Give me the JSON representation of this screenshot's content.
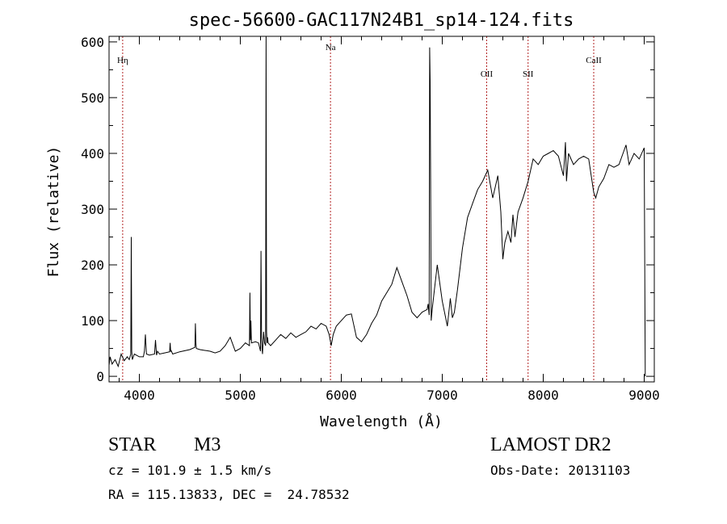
{
  "chart_data": {
    "type": "line",
    "title": "spec-56600-GAC117N24B1_sp14-124.fits",
    "xlabel": "Wavelength (Å)",
    "ylabel": "Flux (relative)",
    "xlim": [
      3700,
      9100
    ],
    "ylim": [
      -10,
      610
    ],
    "xticks": [
      4000,
      5000,
      6000,
      7000,
      8000,
      9000
    ],
    "yticks": [
      0,
      100,
      200,
      300,
      400,
      500,
      600
    ],
    "grid": false,
    "series": [
      {
        "color": "#000000",
        "x": [
          3700,
          3710,
          3730,
          3760,
          3790,
          3820,
          3850,
          3880,
          3900,
          3915,
          3920,
          3925,
          3930,
          3950,
          4000,
          4040,
          4050,
          4060,
          4070,
          4100,
          4150,
          4160,
          4170,
          4180,
          4200,
          4250,
          4300,
          4305,
          4310,
          4315,
          4330,
          4400,
          4500,
          4550,
          4555,
          4560,
          4565,
          4600,
          4700,
          4750,
          4800,
          4850,
          4900,
          4950,
          5000,
          5050,
          5090,
          5095,
          5100,
          5105,
          5110,
          5150,
          5180,
          5200,
          5205,
          5210,
          5215,
          5220,
          5230,
          5240,
          5250,
          5255,
          5260,
          5265,
          5270,
          5275,
          5300,
          5350,
          5400,
          5450,
          5500,
          5550,
          5600,
          5650,
          5700,
          5750,
          5800,
          5850,
          5880,
          5900,
          5920,
          5950,
          6000,
          6050,
          6100,
          6150,
          6200,
          6250,
          6300,
          6350,
          6400,
          6450,
          6500,
          6550,
          6600,
          6650,
          6700,
          6750,
          6800,
          6850,
          6860,
          6870,
          6875,
          6880,
          6885,
          6890,
          6900,
          6950,
          7000,
          7050,
          7080,
          7100,
          7120,
          7150,
          7200,
          7250,
          7300,
          7350,
          7400,
          7450,
          7500,
          7550,
          7580,
          7600,
          7620,
          7650,
          7680,
          7700,
          7720,
          7750,
          7800,
          7850,
          7900,
          7950,
          8000,
          8050,
          8100,
          8150,
          8200,
          8210,
          8220,
          8230,
          8250,
          8300,
          8350,
          8400,
          8450,
          8500,
          8520,
          8550,
          8600,
          8650,
          8700,
          8750,
          8800,
          8820,
          8850,
          8900,
          8950,
          9000,
          9010
        ],
        "y": [
          20,
          35,
          22,
          30,
          18,
          40,
          28,
          35,
          30,
          40,
          250,
          45,
          30,
          40,
          35,
          35,
          45,
          75,
          40,
          38,
          40,
          65,
          38,
          45,
          40,
          42,
          44,
          60,
          45,
          46,
          40,
          44,
          48,
          52,
          95,
          60,
          50,
          48,
          45,
          42,
          45,
          55,
          70,
          45,
          50,
          60,
          55,
          150,
          65,
          100,
          60,
          62,
          60,
          45,
          225,
          70,
          50,
          40,
          80,
          60,
          55,
          610,
          80,
          60,
          70,
          60,
          55,
          65,
          75,
          68,
          78,
          70,
          75,
          80,
          90,
          85,
          95,
          90,
          75,
          55,
          75,
          90,
          100,
          110,
          112,
          70,
          62,
          75,
          95,
          110,
          135,
          150,
          165,
          195,
          170,
          145,
          115,
          105,
          115,
          120,
          130,
          110,
          590,
          530,
          350,
          100,
          120,
          200,
          135,
          90,
          140,
          105,
          115,
          155,
          230,
          285,
          310,
          335,
          350,
          370,
          320,
          360,
          295,
          210,
          240,
          260,
          240,
          290,
          250,
          295,
          320,
          350,
          390,
          380,
          395,
          400,
          405,
          395,
          360,
          390,
          420,
          350,
          400,
          380,
          390,
          395,
          390,
          330,
          320,
          340,
          355,
          380,
          375,
          380,
          405,
          415,
          380,
          400,
          390,
          410,
          0
        ]
      }
    ],
    "annotations": [
      {
        "label": "Hη",
        "x": 3835,
        "level": 1
      },
      {
        "label": "Na",
        "x": 5893,
        "level": 0
      },
      {
        "label": "OII",
        "x": 7440,
        "level": 2
      },
      {
        "label": "SII",
        "x": 7850,
        "level": 2
      },
      {
        "label": "CaII",
        "x": 8500,
        "level": 1
      }
    ],
    "annotation_color": "#b22222"
  },
  "info": {
    "object_type": "STAR",
    "subclass": "M3",
    "survey": "LAMOST DR2",
    "cz": "cz = 101.9 ± 1.5 km/s",
    "obs_date": "Obs-Date: 20131103",
    "coords": "RA = 115.13833, DEC =  24.78532"
  }
}
